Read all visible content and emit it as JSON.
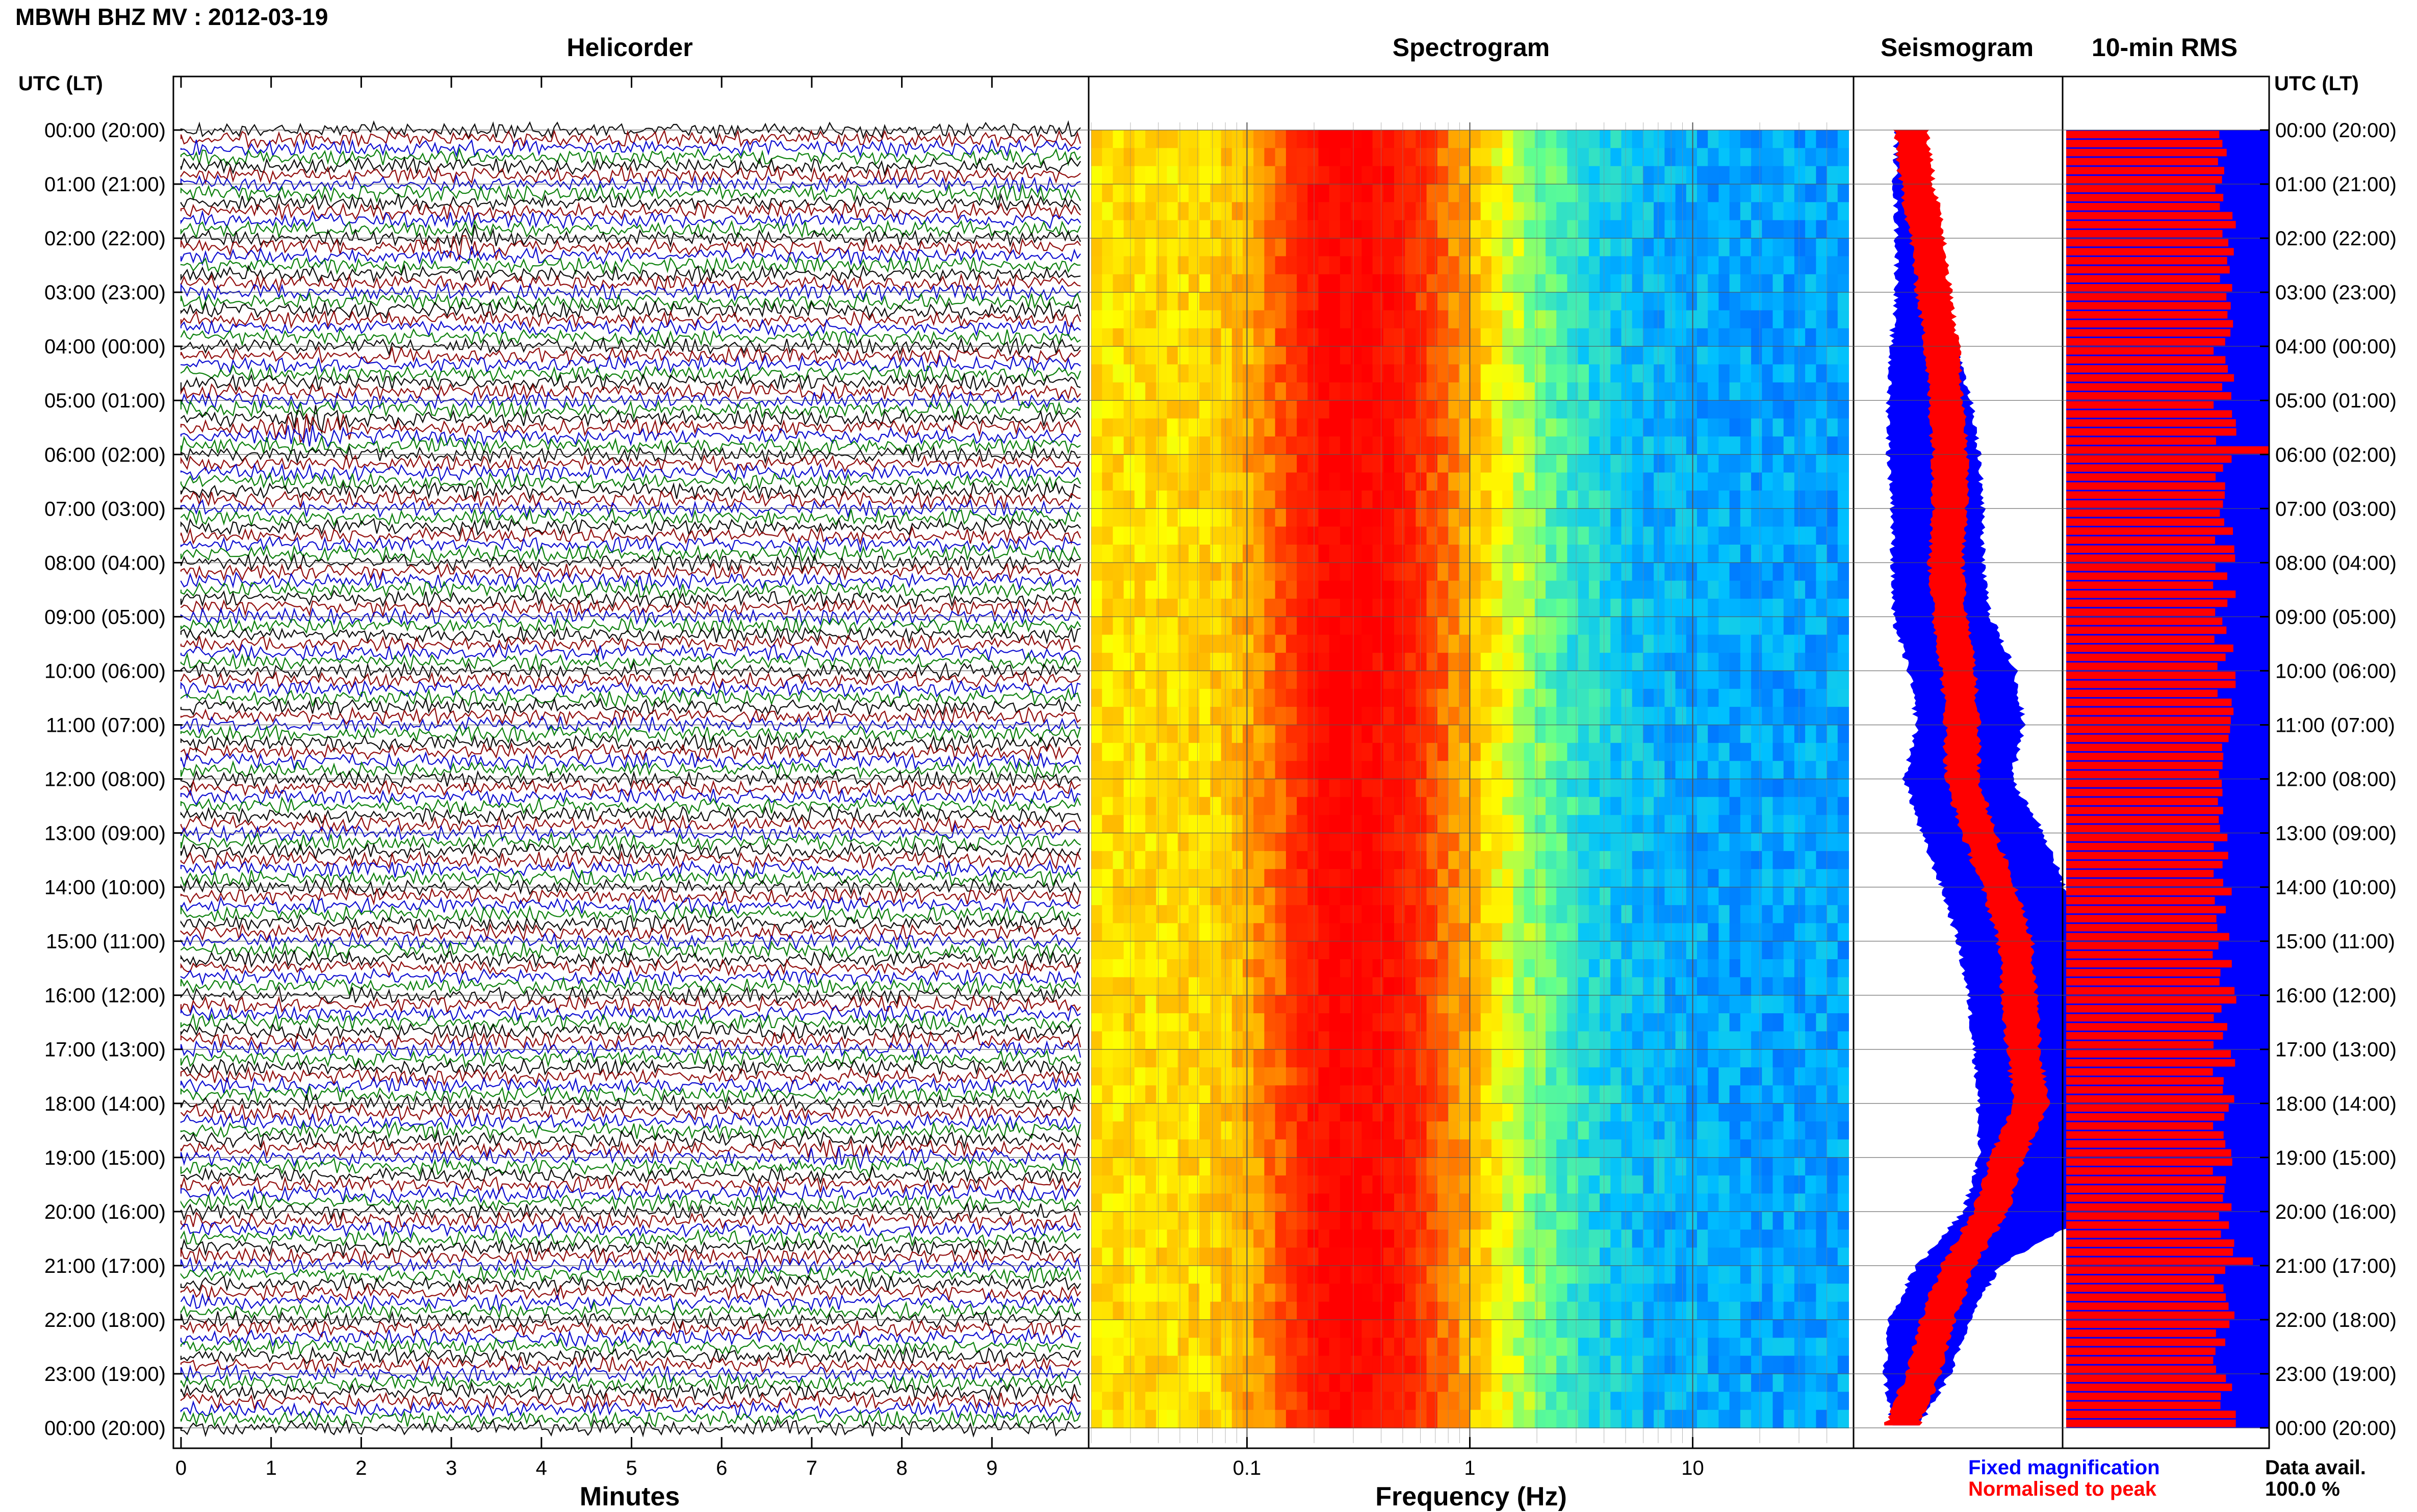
{
  "page": {
    "title": "MBWH BHZ MV : 2012-03-19",
    "time_axis_header": "UTC (LT)",
    "legend": {
      "fixed": "Fixed magnification",
      "normalised": "Normalised to peak",
      "fixed_color": "#0000ff",
      "normalised_color": "#ff0000",
      "data_avail_label": "Data avail.",
      "data_avail_value": "100.0 %"
    },
    "colors": {
      "helicorder_traces": [
        "#000000",
        "#8b0000",
        "#0000cd",
        "#007a00"
      ],
      "rms_fixed": "#0000ff",
      "rms_normalised": "#ff0000"
    }
  },
  "chart_data": [
    {
      "type": "line",
      "panel": "Helicorder",
      "title": "Helicorder",
      "xlabel": "Minutes",
      "ylabel": "",
      "xlim": [
        0,
        10
      ],
      "x_ticks": [
        "0",
        "1",
        "2",
        "3",
        "4",
        "5",
        "6",
        "7",
        "8",
        "9"
      ],
      "y_ticks_utc": [
        "00:00 (20:00)",
        "01:00 (21:00)",
        "02:00 (22:00)",
        "03:00 (23:00)",
        "04:00 (00:00)",
        "05:00 (01:00)",
        "06:00 (02:00)",
        "07:00 (03:00)",
        "08:00 (04:00)",
        "09:00 (05:00)",
        "10:00 (06:00)",
        "11:00 (07:00)",
        "12:00 (08:00)",
        "13:00 (09:00)",
        "14:00 (10:00)",
        "15:00 (11:00)",
        "16:00 (12:00)",
        "17:00 (13:00)",
        "18:00 (14:00)",
        "19:00 (15:00)",
        "20:00 (16:00)",
        "21:00 (17:00)",
        "22:00 (18:00)",
        "23:00 (19:00)",
        "00:00 (20:00)"
      ],
      "traces_per_hour": 6,
      "trace_minutes": 10,
      "events": [
        {
          "hour": 5.5,
          "minute": 1.5,
          "amplitude": 3.0
        },
        {
          "hour": 2.1,
          "minute": 3.2,
          "amplitude": 2.0
        },
        {
          "hour": 8.5,
          "minute": 5.3,
          "amplitude": 1.6
        },
        {
          "hour": 19.0,
          "minute": 7.5,
          "amplitude": 1.8
        },
        {
          "hour": 14.5,
          "minute": 5.4,
          "amplitude": 1.3
        },
        {
          "hour": 18.0,
          "minute": 1.8,
          "amplitude": 1.3
        }
      ]
    },
    {
      "type": "heatmap",
      "panel": "Spectrogram",
      "title": "Spectrogram",
      "xlabel": "Frequency (Hz)",
      "ylabel": "",
      "x_scale": "log",
      "xlim": [
        0.02,
        50
      ],
      "x_ticks": [
        "0.1",
        "1",
        "10"
      ],
      "peak_frequency_hz": 0.28,
      "color_scale": [
        "#0000a0",
        "#0050ff",
        "#00c0ff",
        "#60ff90",
        "#ffff00",
        "#ffa000",
        "#ff3000",
        "#ff0000"
      ]
    },
    {
      "type": "line",
      "panel": "Seismogram",
      "title": "Seismogram",
      "xlabel": "",
      "ylabel": "",
      "series": [
        {
          "name": "Fixed magnification",
          "color": "#0000ff",
          "hours": [
            0,
            1,
            2,
            3,
            4,
            5,
            6,
            7,
            8,
            9,
            10,
            11,
            12,
            13,
            14,
            15,
            16,
            17,
            18,
            19,
            20,
            21,
            22,
            23,
            24
          ],
          "center": [
            0.26,
            0.27,
            0.3,
            0.32,
            0.33,
            0.36,
            0.38,
            0.4,
            0.4,
            0.42,
            0.52,
            0.56,
            0.5,
            0.62,
            0.72,
            0.8,
            0.85,
            0.88,
            0.9,
            0.9,
            0.85,
            0.5,
            0.36,
            0.3,
            0.24
          ],
          "halfwidth": [
            0.06,
            0.08,
            0.1,
            0.12,
            0.16,
            0.2,
            0.22,
            0.22,
            0.22,
            0.24,
            0.26,
            0.26,
            0.26,
            0.3,
            0.3,
            0.3,
            0.3,
            0.3,
            0.3,
            0.3,
            0.32,
            0.2,
            0.2,
            0.16,
            0.06
          ]
        },
        {
          "name": "Normalised to peak",
          "color": "#ff0000",
          "hours": [
            0,
            1,
            2,
            3,
            4,
            5,
            6,
            7,
            8,
            9,
            10,
            11,
            12,
            13,
            14,
            15,
            16,
            17,
            18,
            19,
            20,
            21,
            22,
            23,
            24
          ],
          "center": [
            0.27,
            0.3,
            0.35,
            0.38,
            0.42,
            0.44,
            0.46,
            0.46,
            0.44,
            0.46,
            0.5,
            0.52,
            0.52,
            0.6,
            0.7,
            0.78,
            0.8,
            0.82,
            0.86,
            0.74,
            0.66,
            0.5,
            0.4,
            0.33,
            0.22
          ],
          "halfwidth": [
            0.08,
            0.08,
            0.08,
            0.08,
            0.08,
            0.08,
            0.08,
            0.08,
            0.08,
            0.08,
            0.08,
            0.08,
            0.08,
            0.08,
            0.08,
            0.08,
            0.08,
            0.08,
            0.08,
            0.08,
            0.08,
            0.08,
            0.08,
            0.08,
            0.08
          ]
        }
      ]
    },
    {
      "type": "bar",
      "panel": "10-min RMS",
      "title": "10-min RMS",
      "xlabel": "",
      "ylabel": "",
      "bars_per_hour": 6,
      "series": [
        {
          "name": "Fixed magnification",
          "color": "#0000ff",
          "value": 1.0
        },
        {
          "name": "Normalised to peak",
          "color": "#ff0000",
          "mean": 0.78,
          "spikes": [
            {
              "hour": 5.83,
              "value": 1.0
            },
            {
              "hour": 20.83,
              "value": 0.92
            }
          ]
        }
      ]
    }
  ]
}
